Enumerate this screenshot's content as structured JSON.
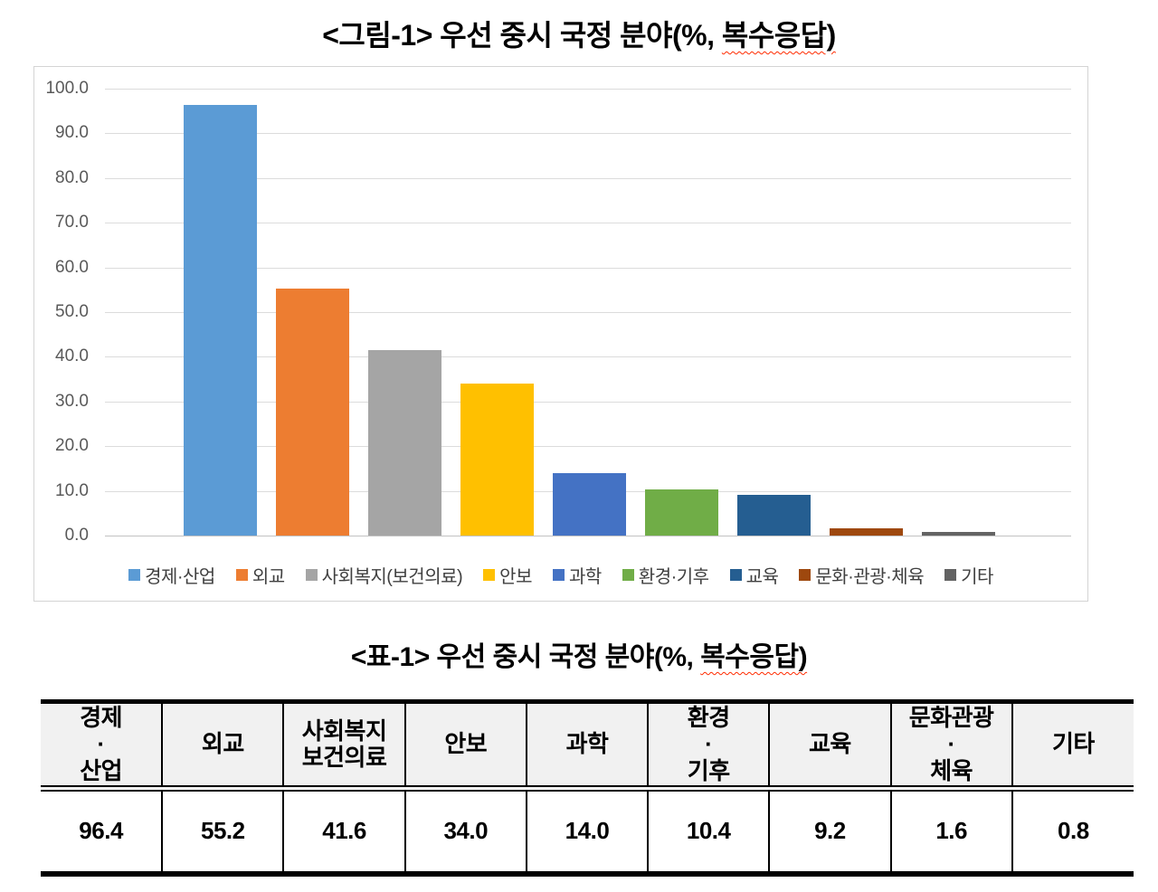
{
  "figure": {
    "title_main": "<그림-1> 우선 중시 국정 분야(%, ",
    "title_underlined": "복수응답)"
  },
  "chart_data": {
    "type": "bar",
    "title": "<그림-1> 우선 중시 국정 분야(%, 복수응답)",
    "categories": [
      "경제·산업",
      "외교",
      "사회복지(보건의료)",
      "안보",
      "과학",
      "환경·기후",
      "교육",
      "문화·관광·체육",
      "기타"
    ],
    "values": [
      96.4,
      55.2,
      41.6,
      34.0,
      14.0,
      10.4,
      9.2,
      1.6,
      0.8
    ],
    "bar_colors": [
      "#5B9BD5",
      "#ED7D31",
      "#A5A5A5",
      "#FFC000",
      "#4472C4",
      "#70AD47",
      "#255E91",
      "#9E480E",
      "#636363"
    ],
    "xlabel": "",
    "ylabel": "",
    "ylim": [
      0,
      100
    ],
    "ytick_step": 10,
    "ytick_labels": [
      "100.0",
      "90.0",
      "80.0",
      "70.0",
      "60.0",
      "50.0",
      "40.0",
      "30.0",
      "20.0",
      "10.0",
      "0.0"
    ],
    "grid": true,
    "legend_position": "bottom",
    "style_colors": {
      "gridline": "#DCDCDC",
      "axis_baseline": "#C2C2C2",
      "tick_label": "#595959",
      "legend_text": "#404040",
      "frame_border": "#D4D4D4",
      "underline_squiggle": "#FF2A00"
    }
  },
  "table": {
    "title_main": "<표-1> 우선 중시 국정 분야(%, ",
    "title_underlined": "복수응답)",
    "headers": [
      "경제\n·\n산업",
      "외교",
      "사회복지\n보건의료",
      "안보",
      "과학",
      "환경\n·\n기후",
      "교육",
      "문화관광\n·\n체육",
      "기타"
    ],
    "values": [
      "96.4",
      "55.2",
      "41.6",
      "34.0",
      "14.0",
      "10.4",
      "9.2",
      "1.6",
      "0.8"
    ],
    "header_bg": "#F1F1F1"
  }
}
